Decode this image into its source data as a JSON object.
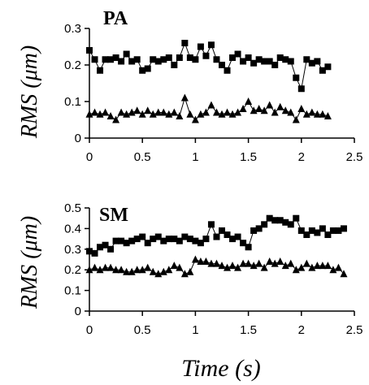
{
  "chart_data": [
    {
      "type": "line",
      "title": "PA",
      "ylabel": "RMS (μm)",
      "xlabel": "",
      "xlim": [
        0,
        2.5
      ],
      "ylim": [
        0,
        0.3
      ],
      "xticks": [
        "0",
        "0.5",
        "1",
        "1.5",
        "2",
        "2.5"
      ],
      "yticks": [
        "0",
        "0.1",
        "0.2",
        "0.3"
      ],
      "grid": false,
      "series": [
        {
          "marker": "square",
          "x": [
            0.0,
            0.05,
            0.1,
            0.15,
            0.2,
            0.25,
            0.3,
            0.35,
            0.4,
            0.45,
            0.5,
            0.55,
            0.6,
            0.65,
            0.7,
            0.75,
            0.8,
            0.85,
            0.9,
            0.95,
            1.0,
            1.05,
            1.1,
            1.15,
            1.2,
            1.25,
            1.3,
            1.35,
            1.4,
            1.45,
            1.5,
            1.55,
            1.6,
            1.65,
            1.7,
            1.75,
            1.8,
            1.85,
            1.9,
            1.95,
            2.0,
            2.05,
            2.1,
            2.15,
            2.2,
            2.25
          ],
          "y": [
            0.24,
            0.215,
            0.185,
            0.215,
            0.215,
            0.22,
            0.21,
            0.23,
            0.21,
            0.215,
            0.185,
            0.19,
            0.215,
            0.21,
            0.215,
            0.22,
            0.2,
            0.22,
            0.26,
            0.22,
            0.215,
            0.25,
            0.225,
            0.255,
            0.215,
            0.2,
            0.185,
            0.22,
            0.23,
            0.21,
            0.22,
            0.205,
            0.215,
            0.21,
            0.21,
            0.2,
            0.22,
            0.215,
            0.21,
            0.165,
            0.135,
            0.215,
            0.205,
            0.21,
            0.185,
            0.195
          ]
        },
        {
          "marker": "triangle",
          "x": [
            0.0,
            0.05,
            0.1,
            0.15,
            0.2,
            0.25,
            0.3,
            0.35,
            0.4,
            0.45,
            0.5,
            0.55,
            0.6,
            0.65,
            0.7,
            0.75,
            0.8,
            0.85,
            0.9,
            0.95,
            1.0,
            1.05,
            1.1,
            1.15,
            1.2,
            1.25,
            1.3,
            1.35,
            1.4,
            1.45,
            1.5,
            1.55,
            1.6,
            1.65,
            1.7,
            1.75,
            1.8,
            1.85,
            1.9,
            1.95,
            2.0,
            2.05,
            2.1,
            2.15,
            2.2,
            2.25
          ],
          "y": [
            0.065,
            0.07,
            0.065,
            0.07,
            0.06,
            0.05,
            0.07,
            0.065,
            0.07,
            0.075,
            0.065,
            0.075,
            0.065,
            0.07,
            0.07,
            0.065,
            0.07,
            0.06,
            0.11,
            0.065,
            0.05,
            0.065,
            0.07,
            0.09,
            0.07,
            0.065,
            0.07,
            0.065,
            0.07,
            0.08,
            0.1,
            0.075,
            0.08,
            0.075,
            0.09,
            0.07,
            0.085,
            0.075,
            0.07,
            0.05,
            0.08,
            0.065,
            0.07,
            0.065,
            0.065,
            0.06
          ]
        }
      ]
    },
    {
      "type": "line",
      "title": "SM",
      "ylabel": "RMS (μm)",
      "xlabel": "Time (s)",
      "xlim": [
        0,
        2.5
      ],
      "ylim": [
        0,
        0.5
      ],
      "xticks": [
        "0",
        "0.5",
        "1",
        "1.5",
        "2",
        "2.5"
      ],
      "yticks": [
        "0",
        "0.1",
        "0.2",
        "0.3",
        "0.4",
        "0.5"
      ],
      "grid": false,
      "series": [
        {
          "marker": "square",
          "x": [
            0.0,
            0.05,
            0.1,
            0.15,
            0.2,
            0.25,
            0.3,
            0.35,
            0.4,
            0.45,
            0.5,
            0.55,
            0.6,
            0.65,
            0.7,
            0.75,
            0.8,
            0.85,
            0.9,
            0.95,
            1.0,
            1.05,
            1.1,
            1.15,
            1.2,
            1.25,
            1.3,
            1.35,
            1.4,
            1.45,
            1.5,
            1.55,
            1.6,
            1.65,
            1.7,
            1.75,
            1.8,
            1.85,
            1.9,
            1.95,
            2.0,
            2.05,
            2.1,
            2.15,
            2.2,
            2.25,
            2.3,
            2.35,
            2.4
          ],
          "y": [
            0.29,
            0.28,
            0.31,
            0.32,
            0.3,
            0.34,
            0.34,
            0.33,
            0.34,
            0.35,
            0.36,
            0.33,
            0.35,
            0.36,
            0.34,
            0.35,
            0.35,
            0.34,
            0.36,
            0.35,
            0.34,
            0.33,
            0.35,
            0.42,
            0.36,
            0.39,
            0.37,
            0.35,
            0.36,
            0.33,
            0.31,
            0.39,
            0.4,
            0.42,
            0.45,
            0.44,
            0.44,
            0.43,
            0.42,
            0.45,
            0.39,
            0.37,
            0.39,
            0.38,
            0.4,
            0.37,
            0.39,
            0.39,
            0.4
          ]
        },
        {
          "marker": "triangle",
          "x": [
            0.0,
            0.05,
            0.1,
            0.15,
            0.2,
            0.25,
            0.3,
            0.35,
            0.4,
            0.45,
            0.5,
            0.55,
            0.6,
            0.65,
            0.7,
            0.75,
            0.8,
            0.85,
            0.9,
            0.95,
            1.0,
            1.05,
            1.1,
            1.15,
            1.2,
            1.25,
            1.3,
            1.35,
            1.4,
            1.45,
            1.5,
            1.55,
            1.6,
            1.65,
            1.7,
            1.75,
            1.8,
            1.85,
            1.9,
            1.95,
            2.0,
            2.05,
            2.1,
            2.15,
            2.2,
            2.25,
            2.3,
            2.35,
            2.4
          ],
          "y": [
            0.2,
            0.21,
            0.2,
            0.21,
            0.21,
            0.2,
            0.2,
            0.19,
            0.19,
            0.2,
            0.2,
            0.21,
            0.19,
            0.18,
            0.19,
            0.2,
            0.22,
            0.21,
            0.18,
            0.19,
            0.25,
            0.24,
            0.24,
            0.23,
            0.23,
            0.22,
            0.21,
            0.22,
            0.21,
            0.23,
            0.23,
            0.22,
            0.23,
            0.21,
            0.24,
            0.23,
            0.24,
            0.22,
            0.23,
            0.2,
            0.21,
            0.23,
            0.21,
            0.22,
            0.22,
            0.22,
            0.2,
            0.21,
            0.18
          ]
        }
      ]
    }
  ]
}
